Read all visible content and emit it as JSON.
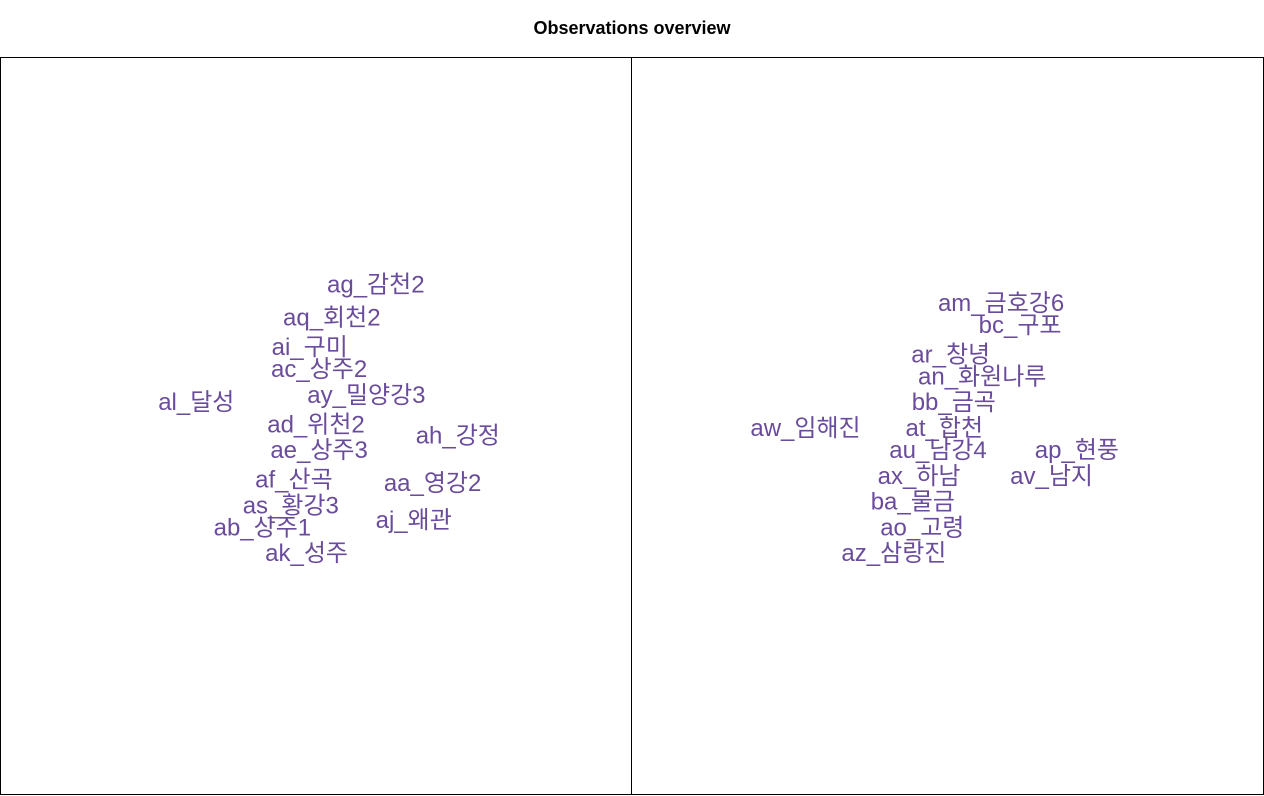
{
  "title": "Observations overview",
  "colors": {
    "label": "#6a4c9c",
    "frame": "#000000",
    "title": "#000000"
  },
  "chart_data": [
    {
      "type": "scatter",
      "title": "",
      "xlabel": "",
      "ylabel": "",
      "xlim": [
        0,
        100
      ],
      "ylim": [
        0,
        100
      ],
      "grid": false,
      "points": [
        {
          "label": "ag_감천2",
          "x": 59.5,
          "y": 69.0
        },
        {
          "label": "aq_회천2",
          "x": 52.5,
          "y": 64.5
        },
        {
          "label": "ai_구미",
          "x": 49.0,
          "y": 60.5
        },
        {
          "label": "ac_상주2",
          "x": 50.5,
          "y": 57.5
        },
        {
          "label": "al_달성",
          "x": 31.0,
          "y": 53.0
        },
        {
          "label": "ay_밀양강3",
          "x": 58.0,
          "y": 54.0
        },
        {
          "label": "ad_위천2",
          "x": 50.0,
          "y": 50.0
        },
        {
          "label": "ah_강정",
          "x": 72.5,
          "y": 48.5
        },
        {
          "label": "ae_상주3",
          "x": 50.5,
          "y": 46.5
        },
        {
          "label": "af_산곡",
          "x": 46.5,
          "y": 42.5
        },
        {
          "label": "aa_영강2",
          "x": 68.5,
          "y": 42.0
        },
        {
          "label": "as_황강3",
          "x": 46.0,
          "y": 39.0
        },
        {
          "label": "aj_왜관",
          "x": 65.5,
          "y": 37.0
        },
        {
          "label": "ab_상주1",
          "x": 41.5,
          "y": 36.0
        },
        {
          "label": "ak_성주",
          "x": 48.5,
          "y": 32.5
        }
      ]
    },
    {
      "type": "scatter",
      "title": "",
      "xlabel": "",
      "ylabel": "",
      "xlim": [
        0,
        100
      ],
      "ylim": [
        0,
        100
      ],
      "grid": false,
      "points": [
        {
          "label": "am_금호강6",
          "x": 58.5,
          "y": 66.5
        },
        {
          "label": "bc_구포",
          "x": 61.5,
          "y": 63.5
        },
        {
          "label": "ar_창녕",
          "x": 50.5,
          "y": 59.5
        },
        {
          "label": "an_화원나루",
          "x": 55.5,
          "y": 56.5
        },
        {
          "label": "bb_금곡",
          "x": 51.0,
          "y": 53.0
        },
        {
          "label": "aw_임해진",
          "x": 27.5,
          "y": 49.5
        },
        {
          "label": "at_합천",
          "x": 49.5,
          "y": 49.5
        },
        {
          "label": "au_남강4",
          "x": 48.5,
          "y": 46.5
        },
        {
          "label": "ap_현풍",
          "x": 70.5,
          "y": 46.5
        },
        {
          "label": "ax_하남",
          "x": 45.5,
          "y": 43.0
        },
        {
          "label": "av_남지",
          "x": 66.5,
          "y": 43.0
        },
        {
          "label": "ba_물금",
          "x": 44.5,
          "y": 39.5
        },
        {
          "label": "ao_고령",
          "x": 46.0,
          "y": 36.0
        },
        {
          "label": "az_삼랑진",
          "x": 41.5,
          "y": 32.5
        }
      ]
    }
  ]
}
